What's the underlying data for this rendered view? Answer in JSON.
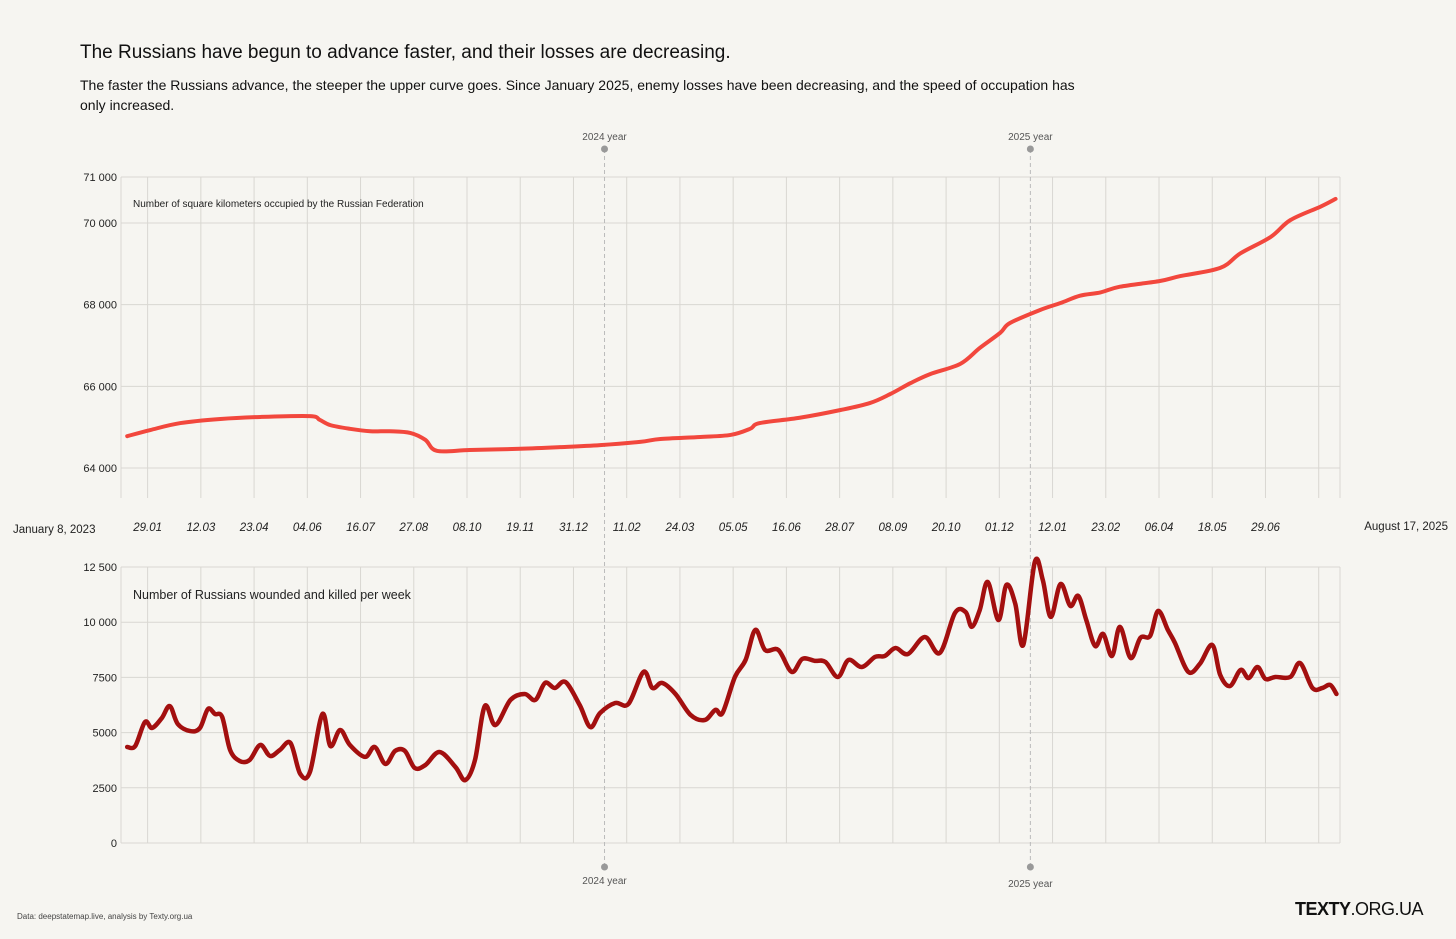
{
  "title": "The Russians have begun to advance faster, and their losses are decreasing.",
  "subtitle": "The faster the Russians advance, the steeper the upper curve goes. Since January 2025, enemy losses have been decreasing, and the speed of occupation has only increased.",
  "source": "Data: deepstatemap.live, analysis by Texty.org.ua",
  "logo": {
    "bold": "TEXTY",
    "rest": ".ORG.UA"
  },
  "colors": {
    "territory": "#f2473d",
    "losses": "#a30f0f",
    "grid": "#d9d7d2",
    "background": "#f6f5f1"
  },
  "chart_data": [
    {
      "type": "line",
      "title": "Number of square kilometers occupied by the Russian Federation",
      "x_unit": "weeks since January 8, 2023",
      "x_start_label": "January 8, 2023",
      "x_end_label": "August 17, 2025",
      "xlim": [
        0,
        137.4
      ],
      "x_ticks": [
        {
          "week": 3,
          "label": "29.01"
        },
        {
          "week": 9,
          "label": "12.03"
        },
        {
          "week": 15,
          "label": "23.04"
        },
        {
          "week": 21,
          "label": "04.06"
        },
        {
          "week": 27,
          "label": "16.07"
        },
        {
          "week": 33,
          "label": "27.08"
        },
        {
          "week": 39,
          "label": "08.10"
        },
        {
          "week": 45,
          "label": "19.11"
        },
        {
          "week": 51,
          "label": "31.12"
        },
        {
          "week": 57,
          "label": "11.02"
        },
        {
          "week": 63,
          "label": "24.03"
        },
        {
          "week": 69,
          "label": "05.05"
        },
        {
          "week": 75,
          "label": "16.06"
        },
        {
          "week": 81,
          "label": "28.07"
        },
        {
          "week": 87,
          "label": "08.09"
        },
        {
          "week": 93,
          "label": "20.10"
        },
        {
          "week": 99,
          "label": "01.12"
        },
        {
          "week": 105,
          "label": "12.01"
        },
        {
          "week": 111,
          "label": "23.02"
        },
        {
          "week": 117,
          "label": "06.04"
        },
        {
          "week": 123,
          "label": "18.05"
        },
        {
          "week": 129,
          "label": "29.06"
        },
        {
          "week": 135,
          "label": ""
        }
      ],
      "year_markers": [
        {
          "week": 54.5,
          "label": "2024 year"
        },
        {
          "week": 102.5,
          "label": "2025 year"
        }
      ],
      "ylim": [
        63200,
        71000
      ],
      "y_ticks": [
        64000,
        66000,
        68000,
        70000,
        71000
      ],
      "y_tick_labels": [
        "64 000",
        "66 000",
        "68 000",
        "70 000",
        "71 000"
      ],
      "points": [
        [
          0.7,
          64780
        ],
        [
          3.3,
          64930
        ],
        [
          6.7,
          65100
        ],
        [
          11.2,
          65200
        ],
        [
          15.7,
          65250
        ],
        [
          21.3,
          65270
        ],
        [
          22.4,
          65180
        ],
        [
          23.6,
          65050
        ],
        [
          25.8,
          64960
        ],
        [
          28.1,
          64900
        ],
        [
          30.3,
          64900
        ],
        [
          32.6,
          64860
        ],
        [
          34.3,
          64690
        ],
        [
          35.6,
          64420
        ],
        [
          39.3,
          64440
        ],
        [
          45.0,
          64470
        ],
        [
          49.5,
          64510
        ],
        [
          54.0,
          64560
        ],
        [
          58.5,
          64640
        ],
        [
          60.8,
          64710
        ],
        [
          65.3,
          64760
        ],
        [
          68.7,
          64810
        ],
        [
          70.9,
          64960
        ],
        [
          72.0,
          65100
        ],
        [
          76.5,
          65230
        ],
        [
          81.1,
          65420
        ],
        [
          84.4,
          65590
        ],
        [
          86.7,
          65810
        ],
        [
          89.0,
          66080
        ],
        [
          91.2,
          66300
        ],
        [
          94.6,
          66550
        ],
        [
          96.8,
          66940
        ],
        [
          99.1,
          67310
        ],
        [
          100.2,
          67550
        ],
        [
          103.6,
          67870
        ],
        [
          105.9,
          68040
        ],
        [
          108.1,
          68220
        ],
        [
          110.4,
          68300
        ],
        [
          112.6,
          68440
        ],
        [
          117.1,
          68580
        ],
        [
          119.4,
          68700
        ],
        [
          123.9,
          68900
        ],
        [
          126.2,
          69260
        ],
        [
          129.6,
          69660
        ],
        [
          131.8,
          70070
        ],
        [
          135.2,
          70400
        ],
        [
          136.9,
          70590
        ]
      ]
    },
    {
      "type": "line",
      "title": "Number of Russians wounded and killed per week",
      "xlim": [
        0,
        137.4
      ],
      "ylim": [
        0,
        12500
      ],
      "y_ticks": [
        0,
        2500,
        5000,
        7500,
        10000,
        12500
      ],
      "y_tick_labels": [
        "0",
        "2500",
        "5000",
        "7500",
        "10 000",
        "12 500"
      ],
      "year_markers": [
        {
          "week": 54.5,
          "label": "2024 year"
        },
        {
          "week": 102.5,
          "label": "2025 year"
        }
      ],
      "points": [
        [
          0.7,
          4350
        ],
        [
          1.6,
          4390
        ],
        [
          2.7,
          5480
        ],
        [
          3.5,
          5210
        ],
        [
          4.6,
          5660
        ],
        [
          5.5,
          6200
        ],
        [
          6.4,
          5390
        ],
        [
          7.8,
          5070
        ],
        [
          8.9,
          5210
        ],
        [
          9.8,
          6070
        ],
        [
          10.6,
          5840
        ],
        [
          11.4,
          5710
        ],
        [
          12.3,
          4210
        ],
        [
          13.4,
          3710
        ],
        [
          14.5,
          3760
        ],
        [
          15.7,
          4440
        ],
        [
          16.8,
          3940
        ],
        [
          17.9,
          4210
        ],
        [
          19.1,
          4530
        ],
        [
          20.2,
          3130
        ],
        [
          21.3,
          3220
        ],
        [
          22.7,
          5840
        ],
        [
          23.6,
          4390
        ],
        [
          24.7,
          5120
        ],
        [
          25.8,
          4440
        ],
        [
          27.5,
          3900
        ],
        [
          28.6,
          4350
        ],
        [
          29.8,
          3580
        ],
        [
          30.9,
          4170
        ],
        [
          32.0,
          4170
        ],
        [
          33.1,
          3400
        ],
        [
          34.3,
          3530
        ],
        [
          35.9,
          4120
        ],
        [
          37.7,
          3440
        ],
        [
          38.8,
          2850
        ],
        [
          39.9,
          3760
        ],
        [
          41.0,
          6200
        ],
        [
          42.2,
          5340
        ],
        [
          43.9,
          6480
        ],
        [
          45.5,
          6750
        ],
        [
          46.7,
          6480
        ],
        [
          47.8,
          7250
        ],
        [
          48.9,
          7020
        ],
        [
          50.1,
          7290
        ],
        [
          51.7,
          6250
        ],
        [
          52.9,
          5250
        ],
        [
          54.0,
          5890
        ],
        [
          55.7,
          6340
        ],
        [
          57.2,
          6300
        ],
        [
          58.9,
          7750
        ],
        [
          59.9,
          7020
        ],
        [
          61.0,
          7250
        ],
        [
          62.5,
          6750
        ],
        [
          64.2,
          5800
        ],
        [
          65.8,
          5570
        ],
        [
          67.0,
          6030
        ],
        [
          67.8,
          5890
        ],
        [
          69.2,
          7520
        ],
        [
          70.4,
          8290
        ],
        [
          71.5,
          9650
        ],
        [
          72.6,
          8740
        ],
        [
          74.1,
          8740
        ],
        [
          75.6,
          7750
        ],
        [
          76.8,
          8340
        ],
        [
          78.2,
          8250
        ],
        [
          79.4,
          8200
        ],
        [
          80.8,
          7520
        ],
        [
          82.0,
          8290
        ],
        [
          83.5,
          7970
        ],
        [
          85.0,
          8430
        ],
        [
          86.1,
          8470
        ],
        [
          87.3,
          8830
        ],
        [
          88.7,
          8560
        ],
        [
          90.6,
          9330
        ],
        [
          92.3,
          8610
        ],
        [
          94.0,
          10420
        ],
        [
          95.2,
          10460
        ],
        [
          95.9,
          9790
        ],
        [
          96.8,
          10560
        ],
        [
          97.7,
          11820
        ],
        [
          98.9,
          10100
        ],
        [
          99.8,
          11690
        ],
        [
          100.8,
          10830
        ],
        [
          101.7,
          8970
        ],
        [
          103.0,
          12730
        ],
        [
          103.9,
          11910
        ],
        [
          104.8,
          10240
        ],
        [
          105.9,
          11730
        ],
        [
          107.0,
          10740
        ],
        [
          107.9,
          11190
        ],
        [
          108.8,
          10100
        ],
        [
          109.8,
          8920
        ],
        [
          110.7,
          9470
        ],
        [
          111.7,
          8470
        ],
        [
          112.6,
          9790
        ],
        [
          113.8,
          8380
        ],
        [
          114.9,
          9290
        ],
        [
          116.0,
          9380
        ],
        [
          116.9,
          10510
        ],
        [
          118.0,
          9650
        ],
        [
          118.8,
          9060
        ],
        [
          120.3,
          7750
        ],
        [
          121.6,
          8110
        ],
        [
          123.0,
          8970
        ],
        [
          123.9,
          7610
        ],
        [
          125.0,
          7110
        ],
        [
          126.2,
          7840
        ],
        [
          127.1,
          7470
        ],
        [
          128.1,
          7970
        ],
        [
          129.0,
          7430
        ],
        [
          130.1,
          7520
        ],
        [
          131.8,
          7520
        ],
        [
          132.9,
          8150
        ],
        [
          134.3,
          7020
        ],
        [
          135.4,
          7020
        ],
        [
          136.3,
          7160
        ],
        [
          137.0,
          6750
        ]
      ]
    }
  ]
}
